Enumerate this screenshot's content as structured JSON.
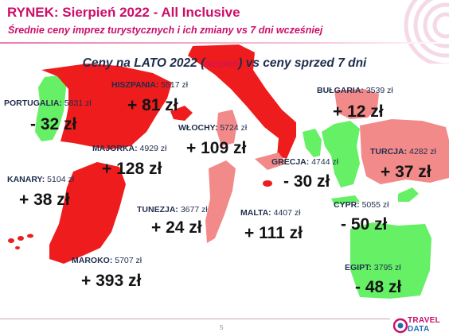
{
  "header": {
    "title": "RYNEK: Sierpień 2022 - All Inclusive",
    "subtitle": "Średnie ceny imprez turystycznych i ich zmiany vs 7 dni wcześniej"
  },
  "map_title": {
    "main_before": "Ceny na LATO 2022 (",
    "small": "sierpień",
    "main_after": ") vs ceny sprzed 7 dni"
  },
  "destinations": [
    {
      "name": "HISZPANIA:",
      "price": "5517 zł",
      "change": "+ 81 zł"
    },
    {
      "name": "PORTUGALIA:",
      "price": "5831 zł",
      "change": "- 32 zł"
    },
    {
      "name": "WŁOCHY:",
      "price": "5724 zł",
      "change": "+ 109 zł"
    },
    {
      "name": "MAJORKA:",
      "price": "4929 zł",
      "change": "+ 128 zł"
    },
    {
      "name": "KANARY:",
      "price": "5104 zł",
      "change": "+ 38 zł"
    },
    {
      "name": "BUŁGARIA:",
      "price": "3539 zł",
      "change": "+ 12 zł"
    },
    {
      "name": "TURCJA:",
      "price": "4282 zł",
      "change": "+ 37 zł"
    },
    {
      "name": "GRECJA:",
      "price": "4744 zł",
      "change": "- 30 zł"
    },
    {
      "name": "TUNEZJA:",
      "price": "3677 zł",
      "change": "+ 24 zł"
    },
    {
      "name": "MALTA:",
      "price": "4407 zł",
      "change": "+ 111 zł"
    },
    {
      "name": "CYPR:",
      "price": "5055 zł",
      "change": "- 50 zł"
    },
    {
      "name": "MAROKO:",
      "price": "5707 zł",
      "change": "+ 393 zł"
    },
    {
      "name": "EGIPT:",
      "price": "3795 zł",
      "change": "- 48 zł"
    }
  ],
  "footer": {
    "page_number": "5",
    "logo_top": "TRAVEL",
    "logo_bottom": "DATA"
  },
  "colors": {
    "accent": "#cc0e6a",
    "increase_strong": "#ee1c1c",
    "increase_light": "#f28a8a",
    "decrease": "#66f066",
    "text_dark": "#1f2d4d"
  }
}
